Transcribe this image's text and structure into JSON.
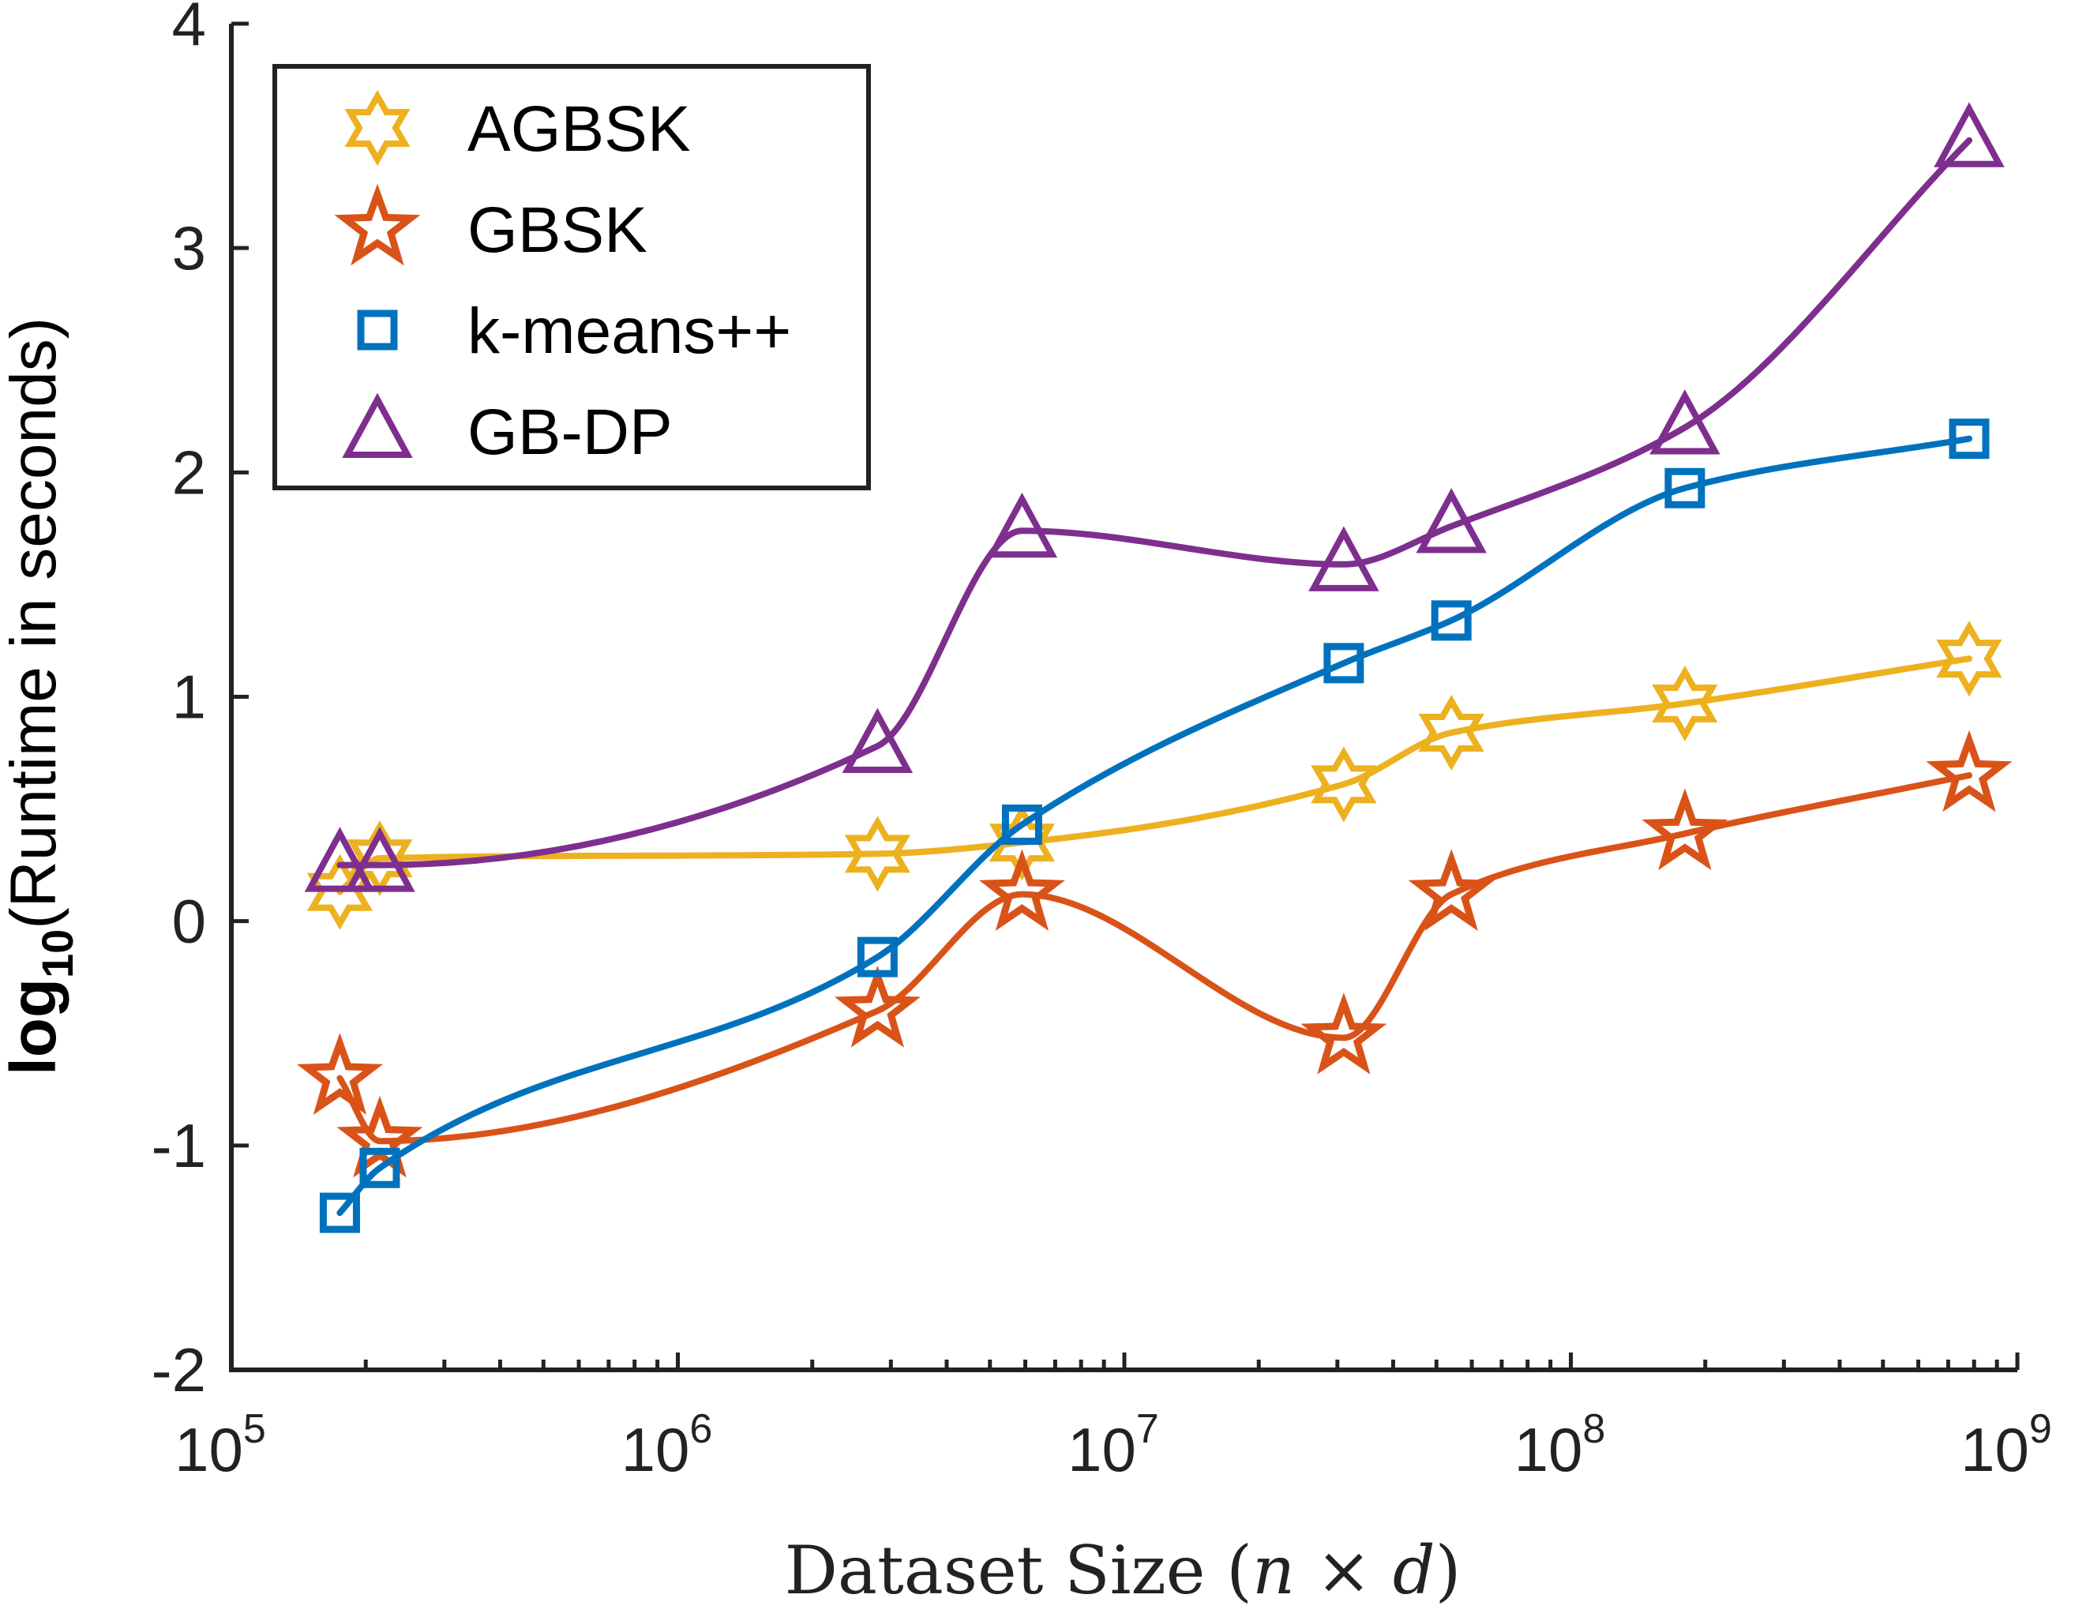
{
  "chart_data": {
    "type": "line",
    "xscale": "log",
    "xlim": [
      100000,
      1000000000
    ],
    "ylim": [
      -2,
      4
    ],
    "x_ticks": [
      {
        "base": "10",
        "exp": "5",
        "value": 100000
      },
      {
        "base": "10",
        "exp": "6",
        "value": 1000000
      },
      {
        "base": "10",
        "exp": "7",
        "value": 10000000
      },
      {
        "base": "10",
        "exp": "8",
        "value": 100000000
      },
      {
        "base": "10",
        "exp": "9",
        "value": 1000000000
      }
    ],
    "y_ticks": [
      {
        "label": "-2",
        "value": -2
      },
      {
        "label": "-1",
        "value": -1
      },
      {
        "label": "0",
        "value": 0
      },
      {
        "label": "1",
        "value": 1
      },
      {
        "label": "2",
        "value": 2
      },
      {
        "label": "3",
        "value": 3
      },
      {
        "label": "4",
        "value": 4
      }
    ],
    "xlabel": {
      "prefix": "Dataset Size (",
      "n": "n",
      "times": " × ",
      "d": "d",
      "suffix": ")"
    },
    "ylabel": {
      "log": "log",
      "sub": "10",
      "rest": "(Runtime in seconds)"
    },
    "grid": false,
    "legend_position": "top-left",
    "x": [
      175000,
      215000,
      2800000,
      5900000,
      31000000,
      54000000,
      180000000,
      780000000
    ],
    "series": [
      {
        "name": "AGBSK",
        "marker": "hexagram",
        "color": "#EDB120",
        "values": [
          0.13,
          0.28,
          0.3,
          0.35,
          0.61,
          0.84,
          0.97,
          1.17
        ]
      },
      {
        "name": "GBSK",
        "marker": "star",
        "color": "#D95319",
        "values": [
          -0.7,
          -0.98,
          -0.4,
          0.12,
          -0.52,
          0.12,
          0.39,
          0.65
        ]
      },
      {
        "name": "k-means++",
        "marker": "square",
        "color": "#0072BD",
        "values": [
          -1.3,
          -1.1,
          -0.16,
          0.43,
          1.15,
          1.34,
          1.93,
          2.15
        ]
      },
      {
        "name": "GB-DP",
        "marker": "triangle",
        "color": "#7E2F8E",
        "values": [
          0.25,
          0.25,
          0.78,
          1.74,
          1.59,
          1.76,
          2.2,
          3.48
        ]
      }
    ]
  }
}
